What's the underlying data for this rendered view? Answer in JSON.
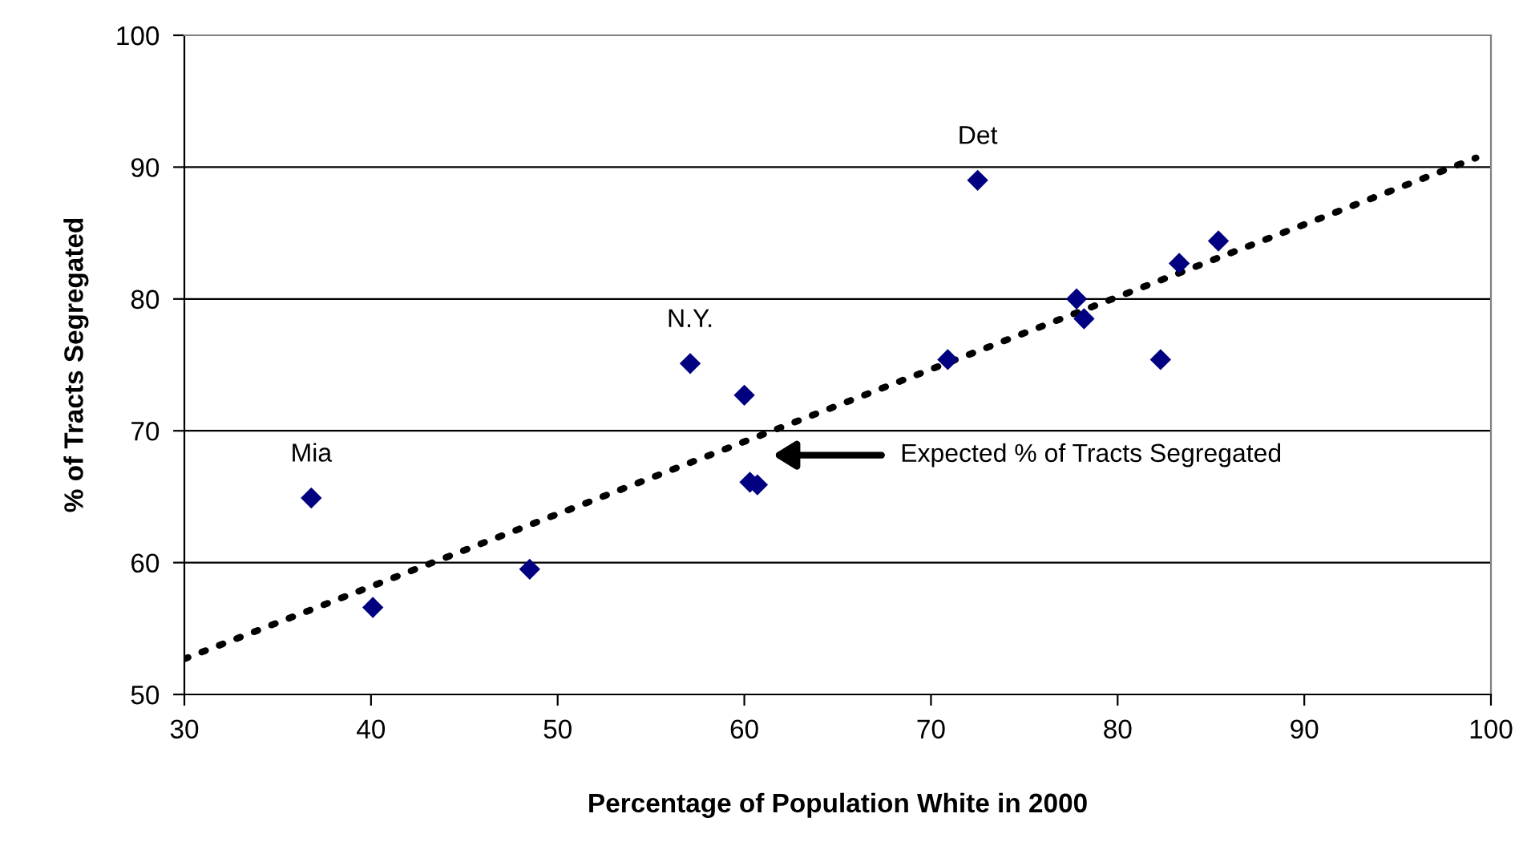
{
  "chart_data": {
    "type": "scatter",
    "xlabel": "Percentage of Population White in 2000",
    "ylabel": "% of Tracts Segregated",
    "xlim": [
      30,
      100
    ],
    "xticks": [
      30,
      40,
      50,
      60,
      70,
      80,
      90,
      100
    ],
    "ylim": [
      50,
      100
    ],
    "yticks": [
      50,
      60,
      70,
      80,
      90,
      100
    ],
    "grid": "y",
    "legend": false,
    "series": [
      {
        "marker": "diamond",
        "color": "#000080",
        "x": [
          36.8,
          40.1,
          48.5,
          57.1,
          60.0,
          60.3,
          60.7,
          70.9,
          72.5,
          77.8,
          78.2,
          82.3,
          83.3,
          85.4
        ],
        "values": [
          64.9,
          56.6,
          59.5,
          75.1,
          72.7,
          66.1,
          65.9,
          75.4,
          89.0,
          80.0,
          78.5,
          75.4,
          82.7,
          84.4
        ]
      },
      {
        "type": "line",
        "color": "#000000",
        "line_style": "dotted",
        "x": [
          30,
          99.2
        ],
        "values": [
          52.7,
          90.7
        ]
      }
    ],
    "annotations": [
      {
        "text": "Mia",
        "x": 36.8,
        "y": 64.9
      },
      {
        "text": "N.Y.",
        "x": 57.1,
        "y": 75.1
      },
      {
        "text": "Det",
        "x": 72.5,
        "y": 89.0
      },
      "Expected % of Tracts Segregated"
    ]
  }
}
